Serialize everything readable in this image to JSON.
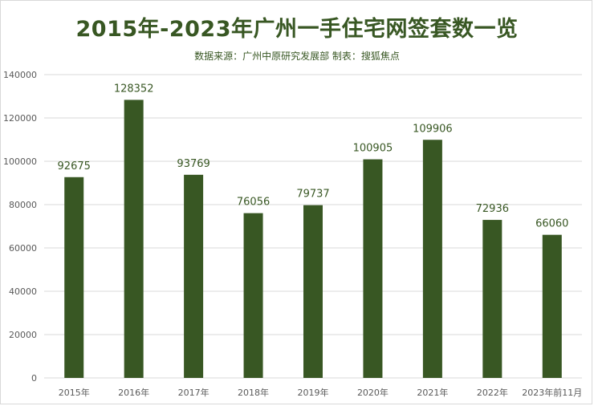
{
  "chart_data": {
    "type": "bar",
    "title": "2015年-2023年广州一手住宅网签套数一览",
    "subtitle": "数据来源：广州中原研究发展部 制表：搜狐焦点",
    "categories": [
      "2015年",
      "2016年",
      "2017年",
      "2018年",
      "2019年",
      "2020年",
      "2021年",
      "2022年",
      "2023年前11月"
    ],
    "values": [
      92675,
      128352,
      93769,
      76056,
      79737,
      100905,
      109906,
      72936,
      66060
    ],
    "data_labels": [
      "92675",
      "128352",
      "93769",
      "76056",
      "79737",
      "100905",
      "109906",
      "72936",
      "66060"
    ],
    "y_ticks": [
      "0",
      "20000",
      "40000",
      "60000",
      "80000",
      "100000",
      "120000",
      "140000"
    ],
    "ylim": [
      0,
      140000
    ],
    "grid": true,
    "legend": "none",
    "xlabel": "",
    "ylabel": "",
    "colors": {
      "bar": "#385723",
      "title": "#385723",
      "label": "#385723",
      "grid": "#d9d9d9",
      "tick": "#595959"
    }
  }
}
